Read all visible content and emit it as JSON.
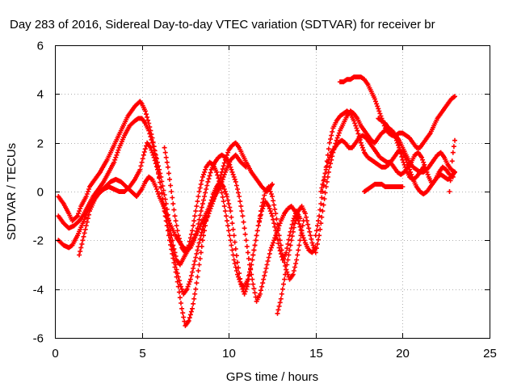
{
  "chart_data": {
    "type": "scatter",
    "title": "Day 283 of 2016, Sidereal Day-to-day VTEC variation (SDTVAR) for receiver br",
    "xlabel": "GPS time / hours",
    "ylabel": "SDTVAR / TECUs",
    "xlim": [
      0,
      25
    ],
    "ylim": [
      -6,
      6
    ],
    "xticks": [
      0,
      5,
      10,
      15,
      20,
      25
    ],
    "yticks": [
      -6,
      -4,
      -2,
      0,
      2,
      4,
      6
    ],
    "grid": true,
    "marker": "plus",
    "color": "#ff0000",
    "series": [
      {
        "x": [
          0.2,
          0.5,
          0.8,
          1.0,
          1.3,
          1.5,
          1.8,
          2.0,
          2.3,
          2.6,
          3.0,
          3.4,
          3.8,
          4.2,
          4.6,
          4.9,
          5.0,
          5.2,
          5.4,
          5.6,
          5.8,
          6.1,
          6.4,
          6.6,
          6.8,
          7.0,
          7.2,
          7.5,
          7.8,
          8.1,
          8.5,
          8.9,
          9.2,
          9.5,
          9.8,
          10.1,
          10.4,
          10.7,
          11.0
        ],
        "y": [
          -0.2,
          -0.5,
          -0.9,
          -1.2,
          -1.0,
          -0.6,
          -0.2,
          0.2,
          0.5,
          0.8,
          1.3,
          1.9,
          2.5,
          3.1,
          3.5,
          3.7,
          3.6,
          3.3,
          2.8,
          2.2,
          1.5,
          0.6,
          -0.5,
          -1.4,
          -2.2,
          -2.8,
          -3.0,
          -2.6,
          -2.2,
          -1.8,
          -1.2,
          -0.6,
          -0.2,
          0.2,
          0.8,
          1.3,
          1.5,
          1.2,
          1.0
        ]
      },
      {
        "x": [
          0.2,
          0.5,
          0.8,
          1.1,
          1.4,
          1.6,
          1.9,
          2.2,
          2.5,
          2.8,
          3.1,
          3.4,
          3.7,
          4.0,
          4.3,
          4.6,
          4.8,
          5.0,
          5.2,
          5.4,
          5.6,
          5.8,
          6.0,
          6.2,
          6.5,
          6.8,
          7.0,
          7.2,
          7.4,
          7.6,
          7.8,
          8.0,
          8.2,
          8.4,
          8.6,
          8.8,
          9.0,
          9.2,
          9.4,
          9.6,
          9.8,
          10.0,
          10.2,
          10.4,
          10.6,
          10.8,
          11.0,
          11.3,
          11.6,
          11.9,
          12.2,
          12.5
        ],
        "y": [
          -1.0,
          -1.3,
          -1.5,
          -1.4,
          -1.2,
          -1.0,
          -0.6,
          -0.2,
          0.1,
          0.4,
          0.8,
          1.2,
          1.8,
          2.3,
          2.7,
          2.9,
          3.0,
          3.0,
          2.8,
          2.5,
          2.0,
          1.4,
          0.6,
          -0.3,
          -1.4,
          -2.4,
          -3.2,
          -3.8,
          -4.2,
          -4.0,
          -3.6,
          -3.0,
          -2.4,
          -1.8,
          -1.3,
          -1.0,
          -0.6,
          -0.2,
          0.3,
          0.8,
          1.3,
          1.7,
          1.9,
          2.0,
          1.8,
          1.5,
          1.2,
          0.8,
          0.5,
          0.2,
          0.0,
          0.3
        ]
      },
      {
        "x": [
          0.2,
          0.5,
          0.8,
          1.0,
          1.3,
          1.6,
          1.9,
          2.2,
          2.5,
          2.8,
          3.1,
          3.4,
          3.7,
          4.0,
          4.3,
          4.6,
          4.9,
          5.1,
          5.3,
          5.5,
          5.7,
          5.9,
          6.1,
          6.3,
          6.6,
          6.9,
          7.1,
          7.3,
          7.5,
          7.7,
          7.9,
          8.1,
          8.3,
          8.5,
          8.7,
          8.9,
          9.1,
          9.3,
          9.5,
          9.7,
          9.9,
          10.1,
          10.3,
          10.5,
          10.7,
          10.9,
          11.1,
          11.3,
          11.5,
          11.7,
          11.9,
          12.1,
          12.3,
          12.5,
          12.7,
          12.9,
          13.1,
          13.3,
          13.5,
          13.7,
          13.9,
          14.1
        ],
        "y": [
          -2.0,
          -2.2,
          -2.3,
          -2.2,
          -1.8,
          -1.3,
          -0.8,
          -0.4,
          -0.1,
          0.1,
          0.2,
          0.1,
          0.0,
          0.0,
          0.2,
          0.5,
          0.9,
          1.5,
          2.0,
          1.8,
          1.4,
          0.9,
          0.2,
          -0.8,
          -2.0,
          -3.1,
          -3.9,
          -4.8,
          -5.5,
          -5.3,
          -4.8,
          -4.0,
          -3.0,
          -2.0,
          -1.2,
          -0.6,
          -0.1,
          0.2,
          0.4,
          0.2,
          -0.2,
          -0.8,
          -1.8,
          -2.9,
          -3.8,
          -4.2,
          -3.8,
          -3.0,
          -2.2,
          -1.4,
          -0.8,
          -0.4,
          -0.6,
          -1.0,
          -1.6,
          -2.3,
          -2.8,
          -2.5,
          -1.8,
          -1.2,
          -0.8,
          -1.1
        ]
      },
      {
        "x": [
          1.4,
          1.6,
          1.8,
          2.0,
          2.3,
          2.6,
          2.9,
          3.2,
          3.5,
          3.8,
          4.1,
          4.4,
          4.7,
          5.0,
          5.2,
          5.4,
          5.6,
          5.8,
          6.0,
          6.2,
          6.4,
          6.6,
          6.8,
          7.0,
          7.2,
          7.4,
          7.6,
          7.8,
          8.0,
          8.2,
          8.4,
          8.6,
          8.8,
          9.0,
          9.2,
          9.4,
          9.6,
          9.8,
          10.0,
          10.2,
          10.4,
          10.6,
          10.8,
          11.0,
          11.2,
          11.4,
          11.6,
          11.8,
          12.0,
          12.2,
          12.4,
          12.6,
          12.8,
          13.0,
          13.2,
          13.4,
          13.6,
          13.8,
          14.0,
          14.2,
          14.4,
          14.6,
          14.8,
          15.0
        ],
        "y": [
          -2.6,
          -2.0,
          -1.4,
          -0.8,
          -0.3,
          0.0,
          0.2,
          0.4,
          0.5,
          0.4,
          0.2,
          0.0,
          -0.2,
          0.1,
          0.4,
          0.6,
          0.5,
          0.2,
          -0.2,
          -0.5,
          -0.9,
          -1.3,
          -1.6,
          -1.9,
          -2.1,
          -2.3,
          -2.4,
          -2.3,
          -2.0,
          -1.5,
          -0.8,
          -0.2,
          0.4,
          0.9,
          1.2,
          1.4,
          1.5,
          1.4,
          1.2,
          0.8,
          0.4,
          -0.2,
          -1.0,
          -2.0,
          -3.0,
          -3.8,
          -4.5,
          -4.2,
          -3.6,
          -3.0,
          -2.4,
          -2.0,
          -1.6,
          -1.2,
          -0.9,
          -0.7,
          -0.6,
          -0.8,
          -1.2,
          -1.7,
          -2.1,
          -2.4,
          -2.5,
          -2.3
        ]
      },
      {
        "x": [
          6.3,
          6.5,
          6.7,
          6.9,
          7.1,
          7.3,
          7.5,
          7.7,
          7.9,
          8.1,
          8.3,
          8.5,
          8.7,
          8.9,
          9.1,
          9.3,
          9.5,
          9.7,
          9.9,
          10.1,
          10.3,
          10.5,
          10.7,
          10.9,
          11.1,
          11.3,
          11.5,
          11.7,
          11.9,
          12.1,
          12.3,
          12.5,
          12.7,
          12.9,
          13.1,
          13.3,
          13.5,
          13.7,
          13.9,
          14.1,
          14.3
        ],
        "y": [
          1.8,
          1.0,
          0.0,
          -1.0,
          -1.8,
          -2.3,
          -2.5,
          -2.2,
          -1.6,
          -0.8,
          0.0,
          0.6,
          1.0,
          1.2,
          1.1,
          0.8,
          0.3,
          -0.4,
          -1.2,
          -2.0,
          -2.8,
          -3.4,
          -3.8,
          -3.9,
          -3.6,
          -3.0,
          -2.2,
          -1.4,
          -0.6,
          0.0,
          0.2,
          -0.2,
          -0.9,
          -1.8,
          -2.6,
          -3.2,
          -3.6,
          -3.4,
          -2.8,
          -2.0,
          -1.2
        ]
      },
      {
        "x": [
          12.8,
          13.0,
          13.2,
          13.4,
          13.6,
          13.8,
          14.0,
          14.2,
          14.4,
          14.6,
          14.8,
          15.0,
          15.2,
          15.4,
          15.6,
          15.8,
          16.0,
          16.2,
          16.4,
          16.6,
          16.8,
          17.0,
          17.2,
          17.4,
          17.6,
          17.8,
          18.0,
          18.2,
          18.4,
          18.6,
          18.8,
          19.0,
          19.2,
          19.4,
          19.6,
          19.8,
          20.0,
          20.2,
          20.4,
          20.6,
          20.8,
          21.0,
          21.2,
          21.4,
          21.6,
          21.8,
          22.0,
          22.2,
          22.4,
          22.6,
          22.8,
          23.0
        ],
        "y": [
          -5.0,
          -4.4,
          -3.6,
          -2.8,
          -2.0,
          -1.3,
          -0.8,
          -0.6,
          -0.9,
          -1.5,
          -2.1,
          -2.5,
          -1.8,
          -0.8,
          0.2,
          1.0,
          1.6,
          2.1,
          2.5,
          2.8,
          3.1,
          3.3,
          3.2,
          3.0,
          2.7,
          2.5,
          2.3,
          2.1,
          2.0,
          2.2,
          2.4,
          2.5,
          2.6,
          2.5,
          2.3,
          2.1,
          1.8,
          1.5,
          1.2,
          1.0,
          0.9,
          0.8,
          0.8,
          0.9,
          1.1,
          1.3,
          1.5,
          1.6,
          1.4,
          1.1,
          0.9,
          0.8
        ]
      },
      {
        "x": [
          15.0,
          15.2,
          15.4,
          15.6,
          15.8,
          16.0,
          16.2,
          16.4,
          16.6,
          16.8,
          17.0,
          17.2,
          17.4,
          17.6,
          17.8,
          18.0,
          18.2,
          18.4,
          18.6,
          18.8,
          19.0,
          19.2,
          19.4,
          19.6,
          19.8,
          20.0,
          20.2,
          20.4,
          20.6,
          20.8,
          21.0,
          21.2,
          21.4,
          21.6,
          21.8,
          22.0,
          22.2,
          22.4,
          22.6,
          22.8,
          23.0
        ],
        "y": [
          -1.8,
          -1.0,
          0.0,
          1.0,
          2.0,
          2.6,
          2.9,
          3.1,
          3.2,
          3.3,
          3.2,
          2.9,
          2.5,
          2.0,
          1.6,
          1.4,
          1.3,
          1.2,
          1.1,
          1.0,
          1.0,
          1.1,
          1.3,
          1.5,
          1.7,
          1.6,
          1.3,
          0.9,
          0.5,
          0.2,
          0.0,
          -0.1,
          0.0,
          0.2,
          0.4,
          0.6,
          0.7,
          0.6,
          0.5,
          0.6,
          0.8
        ]
      },
      {
        "x": [
          15.3,
          15.5,
          15.7,
          15.9,
          16.1,
          16.3,
          16.5,
          16.7,
          16.9,
          17.1,
          17.3,
          17.5,
          17.7,
          17.9,
          18.1,
          18.3,
          18.5,
          18.7,
          18.9,
          19.1,
          19.3,
          19.5,
          19.7,
          19.9,
          20.1,
          20.3,
          20.5,
          20.7,
          20.9,
          21.1,
          21.3,
          21.5,
          21.7,
          21.9,
          22.1,
          22.3,
          22.5,
          22.7,
          22.9
        ],
        "y": [
          0.0,
          0.6,
          1.2,
          1.6,
          1.8,
          2.0,
          2.1,
          2.0,
          1.8,
          1.8,
          2.0,
          2.2,
          2.3,
          2.2,
          2.0,
          1.8,
          1.6,
          1.4,
          1.3,
          1.2,
          1.2,
          1.0,
          0.8,
          0.7,
          0.8,
          1.0,
          1.2,
          1.5,
          1.6,
          1.4,
          1.0,
          0.6,
          0.3,
          0.5,
          0.8,
          1.0,
          0.9,
          0.7,
          0.6
        ]
      },
      {
        "x": [
          16.4,
          16.6,
          16.8,
          17.0,
          17.2,
          17.4,
          17.6,
          17.8,
          18.0,
          18.2,
          18.4,
          18.6,
          18.8,
          19.0,
          19.2,
          19.4,
          19.6,
          19.8,
          20.0,
          20.2,
          20.4,
          20.6,
          20.8,
          21.0,
          21.2,
          21.4,
          21.6,
          21.8,
          22.0,
          22.2,
          22.4,
          22.6,
          22.8,
          23.0
        ],
        "y": [
          4.5,
          4.5,
          4.6,
          4.6,
          4.7,
          4.7,
          4.7,
          4.6,
          4.4,
          4.1,
          3.8,
          3.4,
          3.0,
          2.6,
          2.4,
          2.3,
          2.3,
          2.4,
          2.4,
          2.3,
          2.2,
          2.0,
          1.8,
          1.8,
          2.0,
          2.2,
          2.4,
          2.7,
          3.0,
          3.2,
          3.4,
          3.6,
          3.8,
          3.9
        ]
      },
      {
        "x": [
          17.8,
          18.0,
          18.2,
          18.4,
          18.6,
          18.8,
          19.0,
          19.2,
          19.4,
          19.6,
          19.8,
          20.0
        ],
        "y": [
          0.0,
          0.1,
          0.2,
          0.3,
          0.3,
          0.3,
          0.2,
          0.2,
          0.2,
          0.2,
          0.2,
          0.2
        ]
      },
      {
        "x": [
          18.6,
          18.8,
          19.0,
          19.2,
          19.4,
          19.6,
          19.8,
          20.0,
          20.2,
          20.4,
          20.6,
          20.8,
          21.0,
          21.2
        ],
        "y": [
          3.0,
          2.9,
          2.8,
          2.6,
          2.4,
          2.2,
          1.8,
          1.3,
          0.9,
          0.6,
          0.5,
          0.6,
          0.8,
          1.0
        ]
      },
      {
        "x": [
          22.7,
          22.8,
          22.9,
          23.0
        ],
        "y": [
          0.0,
          0.9,
          1.6,
          2.1
        ]
      }
    ]
  }
}
